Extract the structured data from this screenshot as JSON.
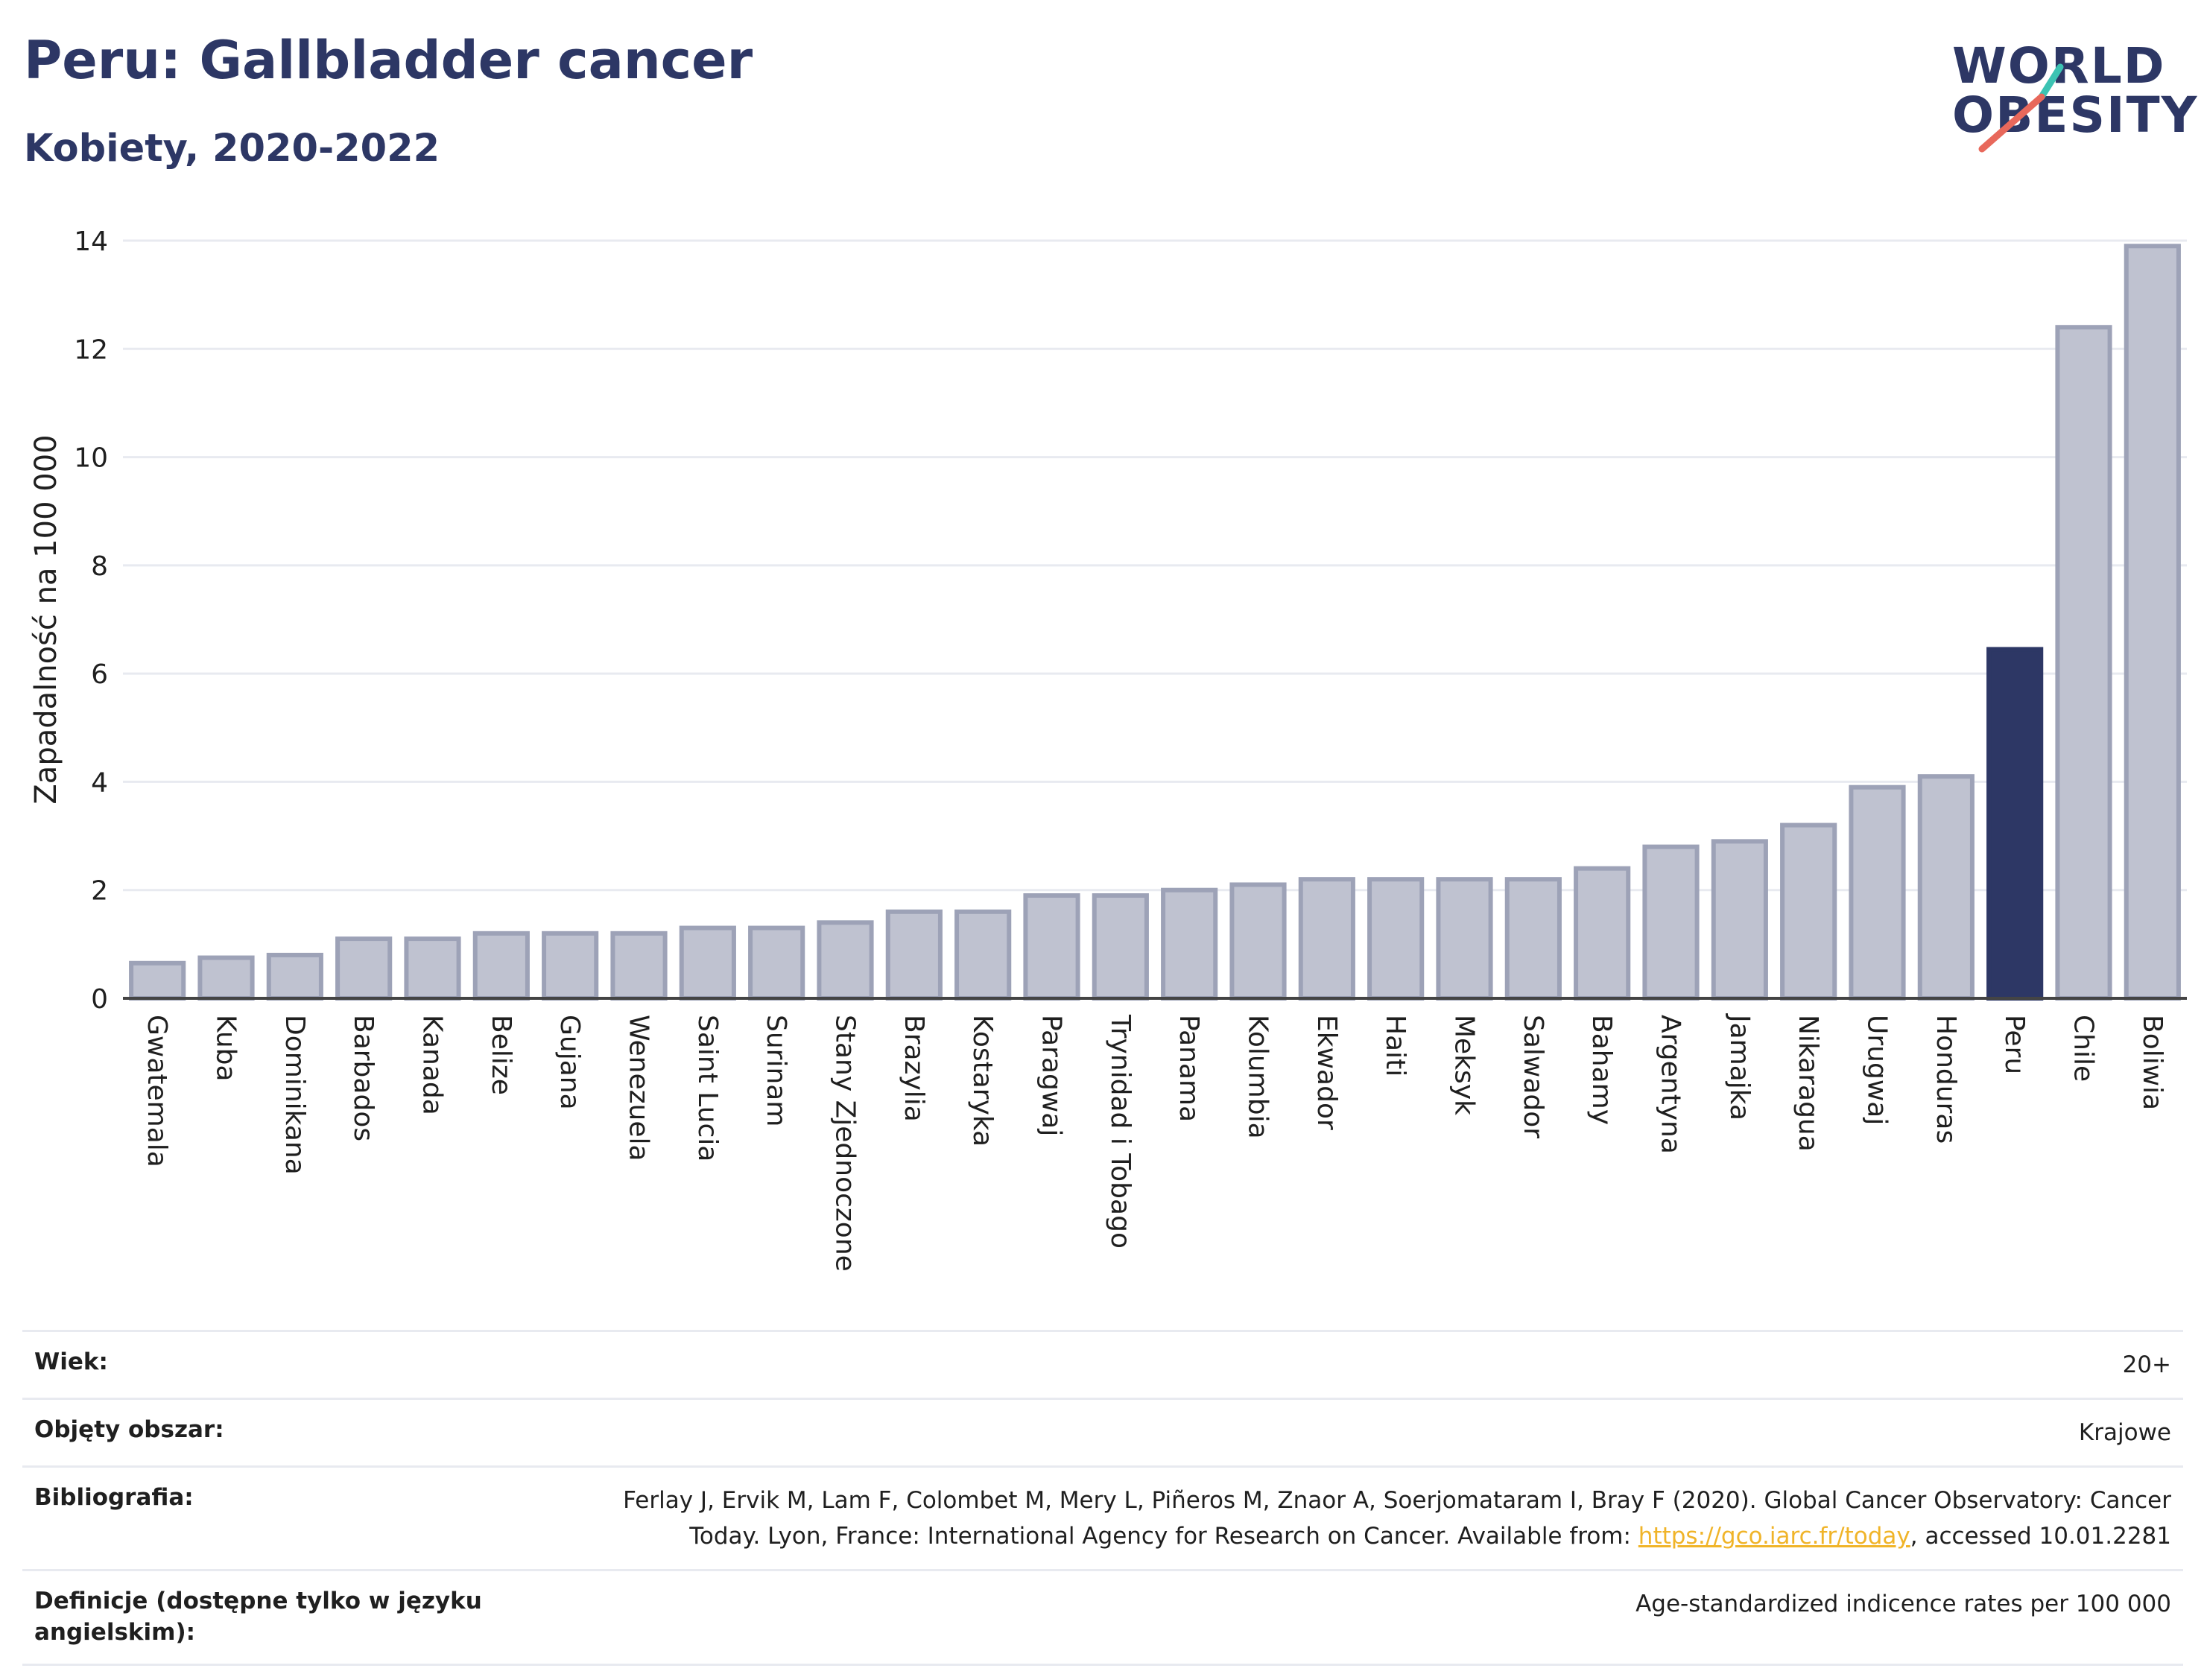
{
  "header": {
    "title": "Peru: Gallbladder cancer",
    "subtitle": "Kobiety, 2020-2022"
  },
  "logo": {
    "line1": "WORLD",
    "line2": "OBESITY",
    "colors": {
      "text": "#2d3765",
      "slash_top": "#3cc3b3",
      "slash_bottom": "#e8685b"
    }
  },
  "chart_data": {
    "type": "bar",
    "ylabel": "Zapadalność na 100 000",
    "xlabel": "",
    "ylim": [
      0,
      14
    ],
    "yticks": [
      0,
      2,
      4,
      6,
      8,
      10,
      12,
      14
    ],
    "grid": true,
    "highlight": "Peru",
    "colors": {
      "bar": "#bfc2d0",
      "bar_edge": "#9da2b7",
      "highlight": "#2d3765",
      "grid": "#e8eaf0",
      "axis": "#444444"
    },
    "categories": [
      "Gwatemala",
      "Kuba",
      "Dominikana",
      "Barbados",
      "Kanada",
      "Belize",
      "Gujana",
      "Wenezuela",
      "Saint Lucia",
      "Surinam",
      "Stany Zjednoczone",
      "Brazylia",
      "Kostaryka",
      "Paragwaj",
      "Trynidad i Tobago",
      "Panama",
      "Kolumbia",
      "Ekwador",
      "Haiti",
      "Meksyk",
      "Salwador",
      "Bahamy",
      "Argentyna",
      "Jamajka",
      "Nikaragua",
      "Urugwaj",
      "Honduras",
      "Peru",
      "Chile",
      "Boliwia"
    ],
    "values": [
      0.65,
      0.75,
      0.8,
      1.1,
      1.1,
      1.2,
      1.2,
      1.2,
      1.3,
      1.3,
      1.4,
      1.6,
      1.6,
      1.9,
      1.9,
      2.0,
      2.1,
      2.2,
      2.2,
      2.2,
      2.2,
      2.4,
      2.8,
      2.9,
      3.2,
      3.9,
      4.1,
      6.45,
      12.4,
      13.9
    ]
  },
  "footer": {
    "rows": [
      {
        "label": "Wiek:",
        "value": "20+"
      },
      {
        "label": "Objęty obszar:",
        "value": "Krajowe"
      },
      {
        "label": "Bibliografia:",
        "value_line1": "Ferlay J, Ervik M, Lam F, Colombet M, Mery L, Piñeros M, Znaor A, Soerjomataram I, Bray F (2020). Global Cancer Observatory: Cancer",
        "value_line2_pre": "Today. Lyon, France: International Agency for Research on Cancer. Available from: ",
        "link": "https://gco.iarc.fr/today",
        "value_line2_post": ", accessed 10.01.2281"
      },
      {
        "label": "Definicje (dostępne tylko w języku angielskim):",
        "value": "Age-standardized indicence rates per 100 000"
      }
    ]
  }
}
